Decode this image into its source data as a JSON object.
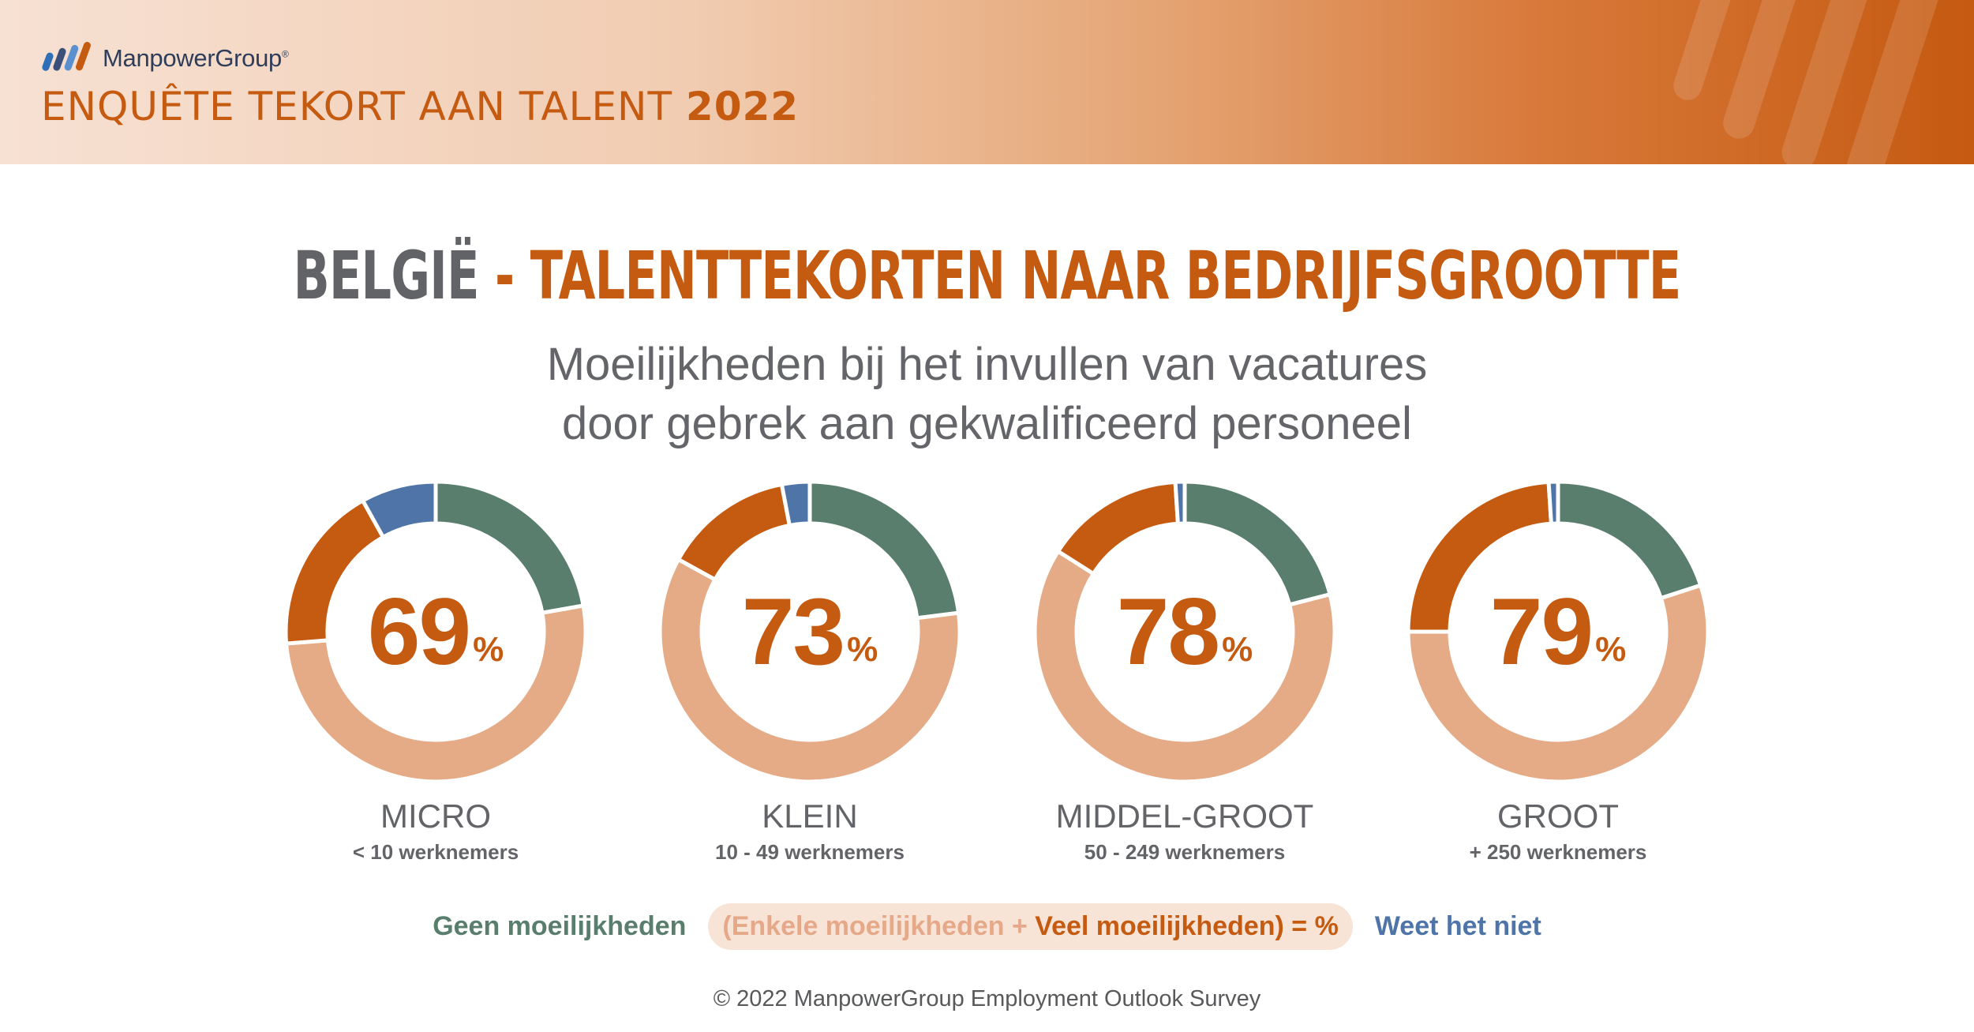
{
  "header": {
    "logo_text": "ManpowerGroup",
    "logo_mark": "®",
    "report_title": "ENQUÊTE TEKORT AAN TALENT ",
    "report_year": "2022"
  },
  "title": {
    "country": "BELGIË",
    "separator": " - ",
    "topic": "TALENTTEKORTEN NAAR BEDRIJFSGROOTTE"
  },
  "subtitle": {
    "line1": "Moeilijkheden bij het invullen van vacatures",
    "line2": "door gebrek aan gekwalificeerd personeel"
  },
  "colors": {
    "geen": "#5a7e6d",
    "enkele": "#e5ab87",
    "veel": "#c55a11",
    "weet_niet": "#4e74a8",
    "accent": "#c55a11"
  },
  "chart_data": {
    "type": "pie",
    "unit": "%",
    "series_names": [
      "Geen moeilijkheden",
      "Enkele moeilijkheden",
      "Veel moeilijkheden",
      "Weet het niet"
    ],
    "charts": [
      {
        "category": "MICRO",
        "subcategory": "< 10 werknemers",
        "total_label": "69",
        "values": {
          "geen": 22,
          "enkele": 51,
          "veel": 18,
          "weet_niet": 8
        }
      },
      {
        "category": "KLEIN",
        "subcategory": "10 - 49  werknemers",
        "total_label": "73",
        "values": {
          "geen": 23,
          "enkele": 60,
          "veel": 14,
          "weet_niet": 3
        }
      },
      {
        "category": "MIDDEL-GROOT",
        "subcategory": "50 - 249 werknemers",
        "total_label": "78",
        "values": {
          "geen": 21,
          "enkele": 63,
          "veel": 15,
          "weet_niet": 1
        }
      },
      {
        "category": "GROOT",
        "subcategory": "+ 250 werknemers",
        "total_label": "79",
        "values": {
          "geen": 20,
          "enkele": 55,
          "veel": 24,
          "weet_niet": 1
        }
      }
    ]
  },
  "legend": {
    "geen": "Geen moeilijkheden",
    "open_paren": "(",
    "enkele": "Enkele moeilijkheden",
    "plus": " + ",
    "veel": "Veel moeilijkheden) = %",
    "weet_niet": "Weet het niet"
  },
  "footer": "© 2022 ManpowerGroup Employment Outlook Survey"
}
